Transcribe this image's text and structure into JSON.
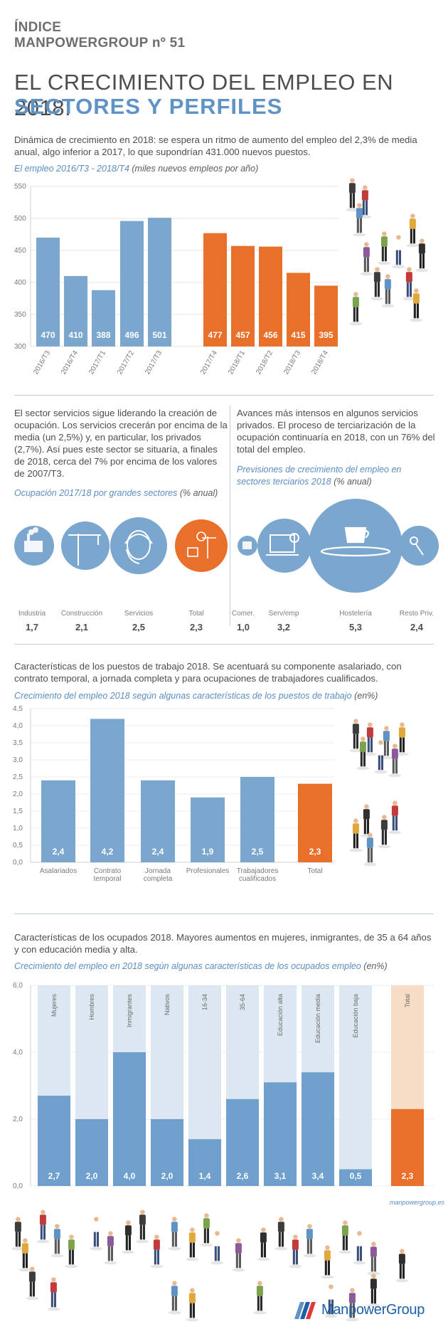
{
  "header": {
    "index_line1": "ÍNDICE",
    "index_line2": "MANPOWERGROUP nº 51",
    "title_line1": "EL CRECIMIENTO DEL EMPLEO EN 2018:",
    "title_line2": "SECTORES Y PERFILES"
  },
  "section1": {
    "intro": "Dinámica de crecimiento en 2018: se espera un ritmo de aumento del empleo del 2,3% de media anual, algo inferior a 2017, lo que supondrían 431.000 nuevos puestos.",
    "subtitle": "El empleo 2016/T3 - 2018/T4",
    "subtitle_unit": "(miles nuevos empleos por año)"
  },
  "section2": {
    "left_text": "El sector servicios sigue liderando la creación de ocupación. Los servicios crecerán por encima de la media (un 2,5%) y, en particular, los privados (2,7%). Así pues este sector se situaría, a finales de 2018, cerca del 7% por encima de los valores de 2007/T3.",
    "left_subtitle": "Ocupación 2017/18 por grandes sectores",
    "left_subtitle_unit": "(% anual)",
    "right_text": "Avances más intensos en algunos servicios privados. El proceso de terciarización de la ocupación continuaría en 2018, con un 76% del total del empleo.",
    "right_subtitle": "Previsiones de crecimiento del empleo en sectores terciarios 2018",
    "right_subtitle_unit": "(% anual)",
    "sectors": [
      {
        "label": "Industria",
        "value": "1,7",
        "icon": "factory-icon"
      },
      {
        "label": "Construcción",
        "value": "2,1",
        "icon": "crane-icon"
      },
      {
        "label": "Servicios",
        "value": "2,5",
        "icon": "headset-operator-icon"
      },
      {
        "label": "Total",
        "value": "2,3",
        "icon": "all-sectors-icon"
      }
    ],
    "tertiary": [
      {
        "label": "Comer.",
        "value": "1,0",
        "icon": "shop-icon"
      },
      {
        "label": "Serv/emp",
        "value": "3,2",
        "icon": "laptop-gears-icon"
      },
      {
        "label": "Hostelería",
        "value": "5,3",
        "icon": "cup-tray-icon"
      },
      {
        "label": "Resto Priv.",
        "value": "2,4",
        "icon": "keys-icon"
      }
    ],
    "colors": {
      "blue": "#7ba7cf",
      "orange": "#e8702a"
    }
  },
  "section3": {
    "intro": "Características de los puestos de trabajo 2018.  Se acentuará su componente asalariado, con contrato temporal, a jornada completa y para ocupaciones de trabajadores cualificados.",
    "subtitle": "Crecimiento del empleo 2018  según algunas características de los puestos de trabajo",
    "subtitle_unit": "(en%)"
  },
  "section4": {
    "intro": "Características de los ocupados 2018. Mayores aumentos en mujeres, inmigrantes, de 35 a 64 años y con educación media y alta.",
    "subtitle": "Crecimiento del empleo en 2018  según algunas características de los ocupados empleo",
    "subtitle_unit": "(en%)"
  },
  "footer": {
    "url": "manpowergroup.es",
    "brand": "ManpowerGroup"
  },
  "chart_data": [
    {
      "type": "bar",
      "categories": [
        "2016/T3",
        "2016/T4",
        "2017/T1",
        "2017/T2",
        "2017/T3",
        "2017/T4",
        "2018/T1",
        "2018/T2",
        "2018/T3",
        "2018/T4"
      ],
      "values": [
        470,
        410,
        388,
        496,
        501,
        477,
        457,
        456,
        415,
        395
      ],
      "data_labels": [
        "470",
        "410",
        "388",
        "496",
        "501",
        "477",
        "457",
        "456",
        "415",
        "395"
      ],
      "bar_colors": [
        "#7ba7cf",
        "#7ba7cf",
        "#7ba7cf",
        "#7ba7cf",
        "#7ba7cf",
        "#e8702a",
        "#e8702a",
        "#e8702a",
        "#e8702a",
        "#e8702a"
      ],
      "ylim": [
        300,
        550
      ],
      "yticks": [
        "300",
        "350",
        "400",
        "450",
        "500",
        "550"
      ]
    },
    {
      "type": "bar",
      "categories": [
        "Asalariados",
        "Contrato temporal",
        "Jornada completa",
        "Profesionales",
        "Trabajadores cualificados",
        "Total"
      ],
      "values": [
        2.4,
        4.2,
        2.4,
        1.9,
        2.5,
        2.3
      ],
      "data_labels": [
        "2,4",
        "4,2",
        "2,4",
        "1,9",
        "2,5",
        "2,3"
      ],
      "bar_colors": [
        "#7ba7cf",
        "#7ba7cf",
        "#7ba7cf",
        "#7ba7cf",
        "#7ba7cf",
        "#e8702a"
      ],
      "ylim": [
        0,
        4.5
      ],
      "yticks": [
        "0,0",
        "0,5",
        "1,0",
        "1,5",
        "2,0",
        "2,5",
        "3,0",
        "3,5",
        "4,0",
        "4,5"
      ]
    },
    {
      "type": "bar",
      "categories": [
        "Mujeres",
        "Hombres",
        "Inmigrantes",
        "Nativos",
        "16-34",
        "35-64",
        "Educación alta",
        "Educación media",
        "Educación baja",
        "Total"
      ],
      "values": [
        2.7,
        2.0,
        4.0,
        2.0,
        1.4,
        2.6,
        3.1,
        3.4,
        0.5,
        2.3
      ],
      "data_labels": [
        "2,7",
        "2,0",
        "4,0",
        "2,0",
        "1,4",
        "2,6",
        "3,1",
        "3,4",
        "0,5",
        "2,3"
      ],
      "bar_colors": [
        "#6f9fcc",
        "#6f9fcc",
        "#6f9fcc",
        "#6f9fcc",
        "#6f9fcc",
        "#6f9fcc",
        "#6f9fcc",
        "#6f9fcc",
        "#6f9fcc",
        "#e8702a"
      ],
      "bg_colors": [
        "#dce7f1",
        "#dce7f1",
        "#dce7f1",
        "#dce7f1",
        "#dce7f1",
        "#dce7f1",
        "#dce7f1",
        "#dce7f1",
        "#dce7f1",
        "#f7dcc6"
      ],
      "ylim": [
        0,
        6
      ],
      "yticks": [
        "0,0",
        "2,0",
        "4,0",
        "6,0"
      ]
    }
  ]
}
